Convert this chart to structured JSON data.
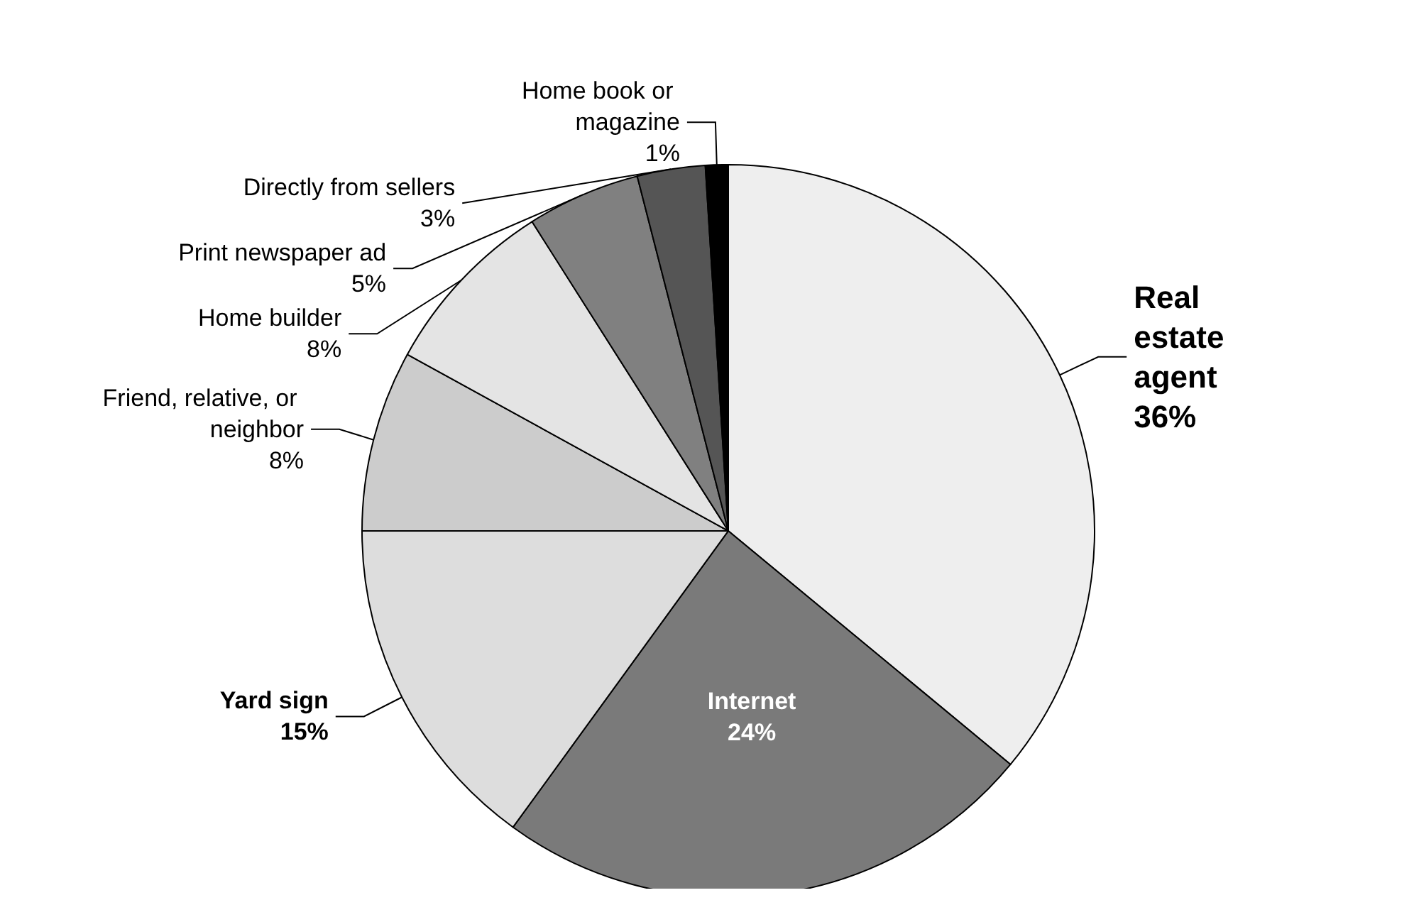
{
  "chart_data": {
    "type": "pie",
    "categories": [
      "Real estate agent",
      "Internet",
      "Yard sign",
      "Friend, relative, or neighbor",
      "Home builder",
      "Print newspaper ad",
      "Directly from sellers",
      "Home book or magazine"
    ],
    "values": [
      36,
      24,
      15,
      8,
      8,
      5,
      3,
      1
    ],
    "value_labels": [
      "36%",
      "24%",
      "15%",
      "8%",
      "8%",
      "5%",
      "3%",
      "1%"
    ],
    "colors": [
      "#eeeeee",
      "#7a7a7a",
      "#dddddd",
      "#cccccc",
      "#e4e4e4",
      "#808080",
      "#555555",
      "#000000"
    ],
    "legend": false
  }
}
